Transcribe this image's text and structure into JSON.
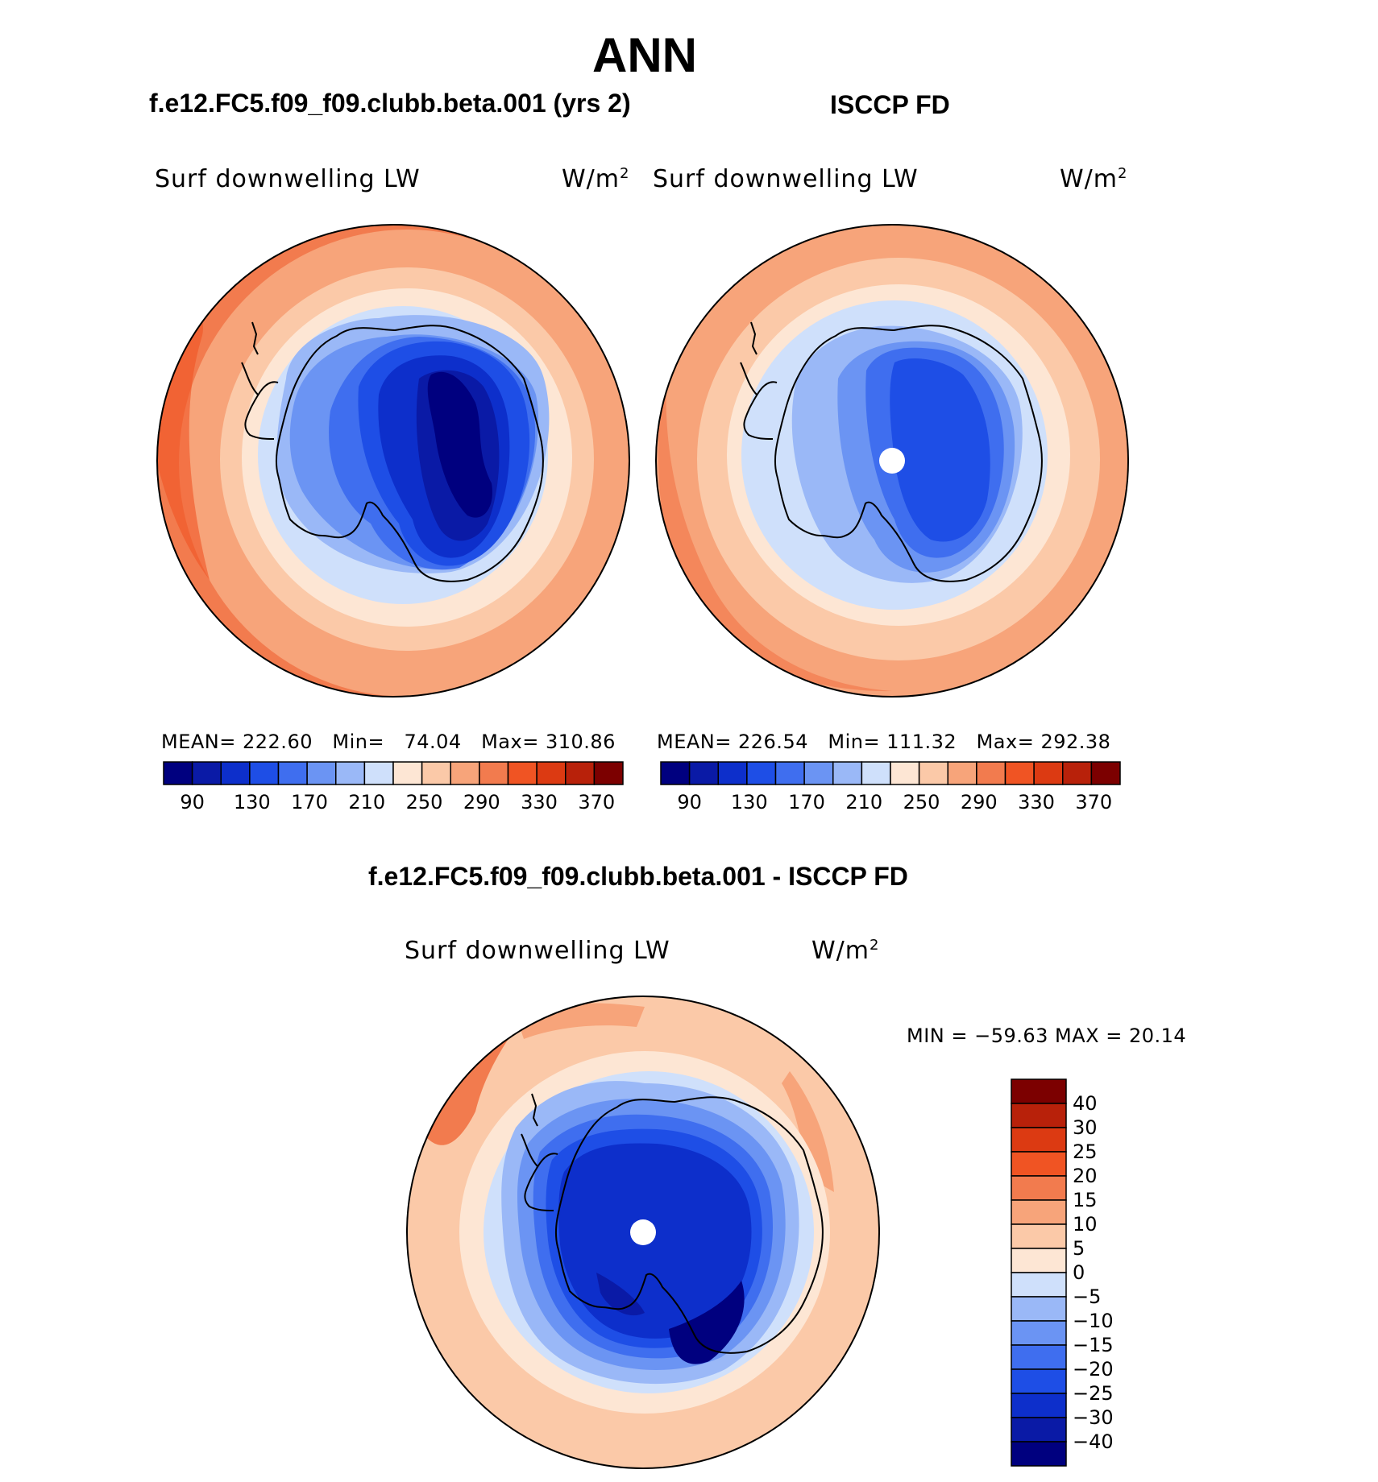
{
  "title": "ANN",
  "panels": {
    "left": {
      "header": "f.e12.FC5.f09_f09.clubb.beta.001 (yrs 2)",
      "var_label": "Surf downwelling LW",
      "units": "W/m",
      "units_sup": "2",
      "mean_label": "MEAN=",
      "mean": "222.60",
      "min_label": "Min=",
      "min": "74.04",
      "max_label": "Max=",
      "max": "310.86"
    },
    "right": {
      "header": "ISCCP FD",
      "var_label": "Surf downwelling LW",
      "units": "W/m",
      "units_sup": "2",
      "mean_label": "MEAN=",
      "mean": "226.54",
      "min_label": "Min=",
      "min": "111.32",
      "max_label": "Max=",
      "max": "292.38"
    },
    "diff": {
      "header": "f.e12.FC5.f09_f09.clubb.beta.001 - ISCCP FD",
      "var_label": "Surf downwelling LW",
      "units": "W/m",
      "units_sup": "2",
      "minmax_text": "MIN = −59.63 MAX =  20.14"
    }
  },
  "colorbar_top": {
    "tick_labels": [
      "90",
      "130",
      "170",
      "210",
      "250",
      "290",
      "330",
      "370"
    ],
    "colors": [
      "#00007f",
      "#0a1aa6",
      "#0d2fcb",
      "#1e4ee6",
      "#3f6eef",
      "#6b94f3",
      "#9ab8f7",
      "#cfe0fb",
      "#fde6d4",
      "#fbc9a8",
      "#f7a47a",
      "#f27b4e",
      "#f05423",
      "#dc3a12",
      "#b8210a",
      "#7c0000"
    ]
  },
  "colorbar_diff": {
    "tick_labels": [
      "40",
      "30",
      "25",
      "20",
      "15",
      "10",
      "5",
      "0",
      "−5",
      "−10",
      "−15",
      "−20",
      "−25",
      "−30",
      "−40"
    ],
    "colors": [
      "#7c0000",
      "#b8210a",
      "#dc3a12",
      "#f05423",
      "#f27b4e",
      "#f7a47a",
      "#fbc9a8",
      "#fde6d4",
      "#cfe0fb",
      "#9ab8f7",
      "#6b94f3",
      "#3f6eef",
      "#1e4ee6",
      "#0d2fcb",
      "#0a1aa6",
      "#00007f"
    ]
  },
  "chart_data": [
    {
      "type": "heatmap",
      "title": "f.e12.FC5.f09_f09.clubb.beta.001 (yrs 2)",
      "subtitle": "Surf downwelling LW (W/m2)",
      "projection": "south polar stereographic",
      "levels": [
        90,
        110,
        130,
        150,
        170,
        190,
        210,
        230,
        250,
        270,
        290,
        310,
        330,
        350,
        370
      ],
      "stats": {
        "mean": 222.6,
        "min": 74.04,
        "max": 310.86
      }
    },
    {
      "type": "heatmap",
      "title": "ISCCP FD",
      "subtitle": "Surf downwelling LW (W/m2)",
      "projection": "south polar stereographic",
      "levels": [
        90,
        110,
        130,
        150,
        170,
        190,
        210,
        230,
        250,
        270,
        290,
        310,
        330,
        350,
        370
      ],
      "stats": {
        "mean": 226.54,
        "min": 111.32,
        "max": 292.38
      }
    },
    {
      "type": "heatmap",
      "title": "f.e12.FC5.f09_f09.clubb.beta.001 - ISCCP FD",
      "subtitle": "Surf downwelling LW (W/m2)",
      "projection": "south polar stereographic",
      "levels": [
        -40,
        -30,
        -25,
        -20,
        -15,
        -10,
        -5,
        0,
        5,
        10,
        15,
        20,
        25,
        30,
        40
      ],
      "stats": {
        "min": -59.63,
        "max": 20.14
      }
    }
  ]
}
